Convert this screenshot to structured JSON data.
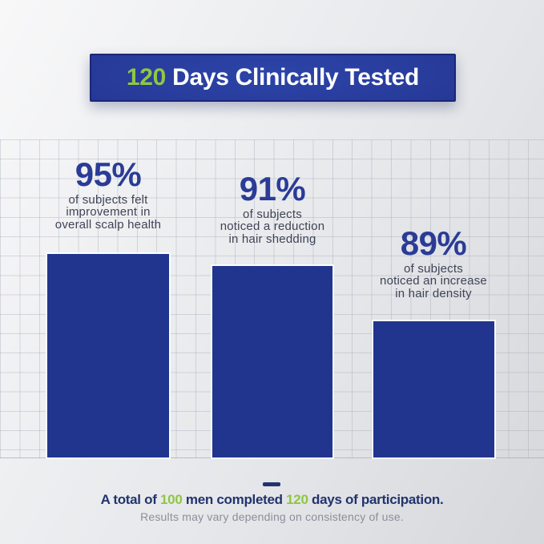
{
  "banner": {
    "highlight": "120",
    "rest": " Days Clinically Tested"
  },
  "bars": [
    {
      "pct": "95%",
      "value": 95,
      "lines": [
        "of subjects felt",
        "improvement in",
        "overall scalp health"
      ]
    },
    {
      "pct": "91%",
      "value": 91,
      "lines": [
        "of subjects",
        "noticed a reduction",
        "in hair shedding"
      ]
    },
    {
      "pct": "89%",
      "value": 89,
      "lines": [
        "of subjects",
        "noticed an increase",
        "in hair density"
      ]
    }
  ],
  "footer": {
    "part1": "A total of ",
    "num1": "100",
    "part2": " men completed ",
    "num2": "120",
    "part3": " days of participation.",
    "disclaimer": "Results may vary depending on consistency of use."
  },
  "colors": {
    "bar_blue": "#21358f",
    "banner_blue": "#273a99",
    "accent_green": "#8fc643",
    "stat_navy": "#2a3c96",
    "caption_slate": "#3e4456",
    "footer_navy": "#22336e",
    "disclaimer_gray": "#8a8f99"
  },
  "chart_data": {
    "type": "bar",
    "title": "120 Days Clinically Tested",
    "categories": [
      "of subjects felt improvement in overall scalp health",
      "of subjects noticed a reduction in hair shedding",
      "of subjects noticed an increase in hair density"
    ],
    "values": [
      95,
      91,
      89
    ],
    "unit": "%",
    "ylim": [
      0,
      100
    ],
    "grid": true,
    "legend": false,
    "data_labels": [
      "95%",
      "91%",
      "89%"
    ],
    "annotations": [
      "A total of 100 men completed 120 days of participation.",
      "Results may vary depending on consistency of use."
    ]
  }
}
